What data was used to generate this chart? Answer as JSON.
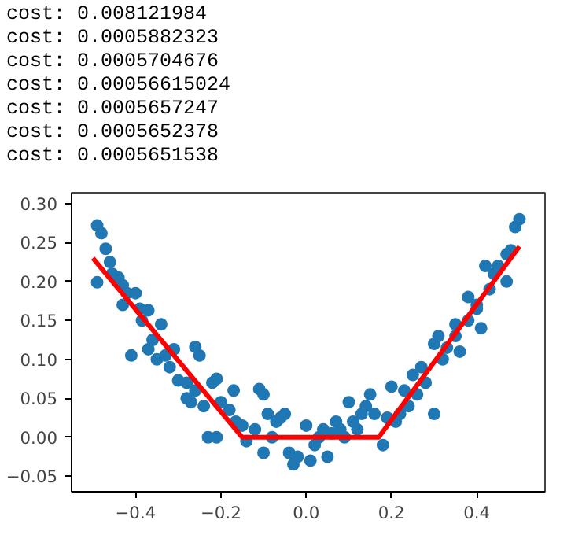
{
  "chart_data": {
    "type": "scatter",
    "annotations": [
      "cost: 0.008121984",
      "cost: 0.0005882323",
      "cost: 0.0005704676",
      "cost: 0.00056615024",
      "cost: 0.0005657247",
      "cost: 0.0005652378",
      "cost: 0.0005651538"
    ],
    "xlim": [
      -0.55,
      0.56
    ],
    "ylim": [
      -0.07,
      0.314
    ],
    "xticks": [
      {
        "value": -0.4,
        "label": "−0.4"
      },
      {
        "value": -0.2,
        "label": "−0.2"
      },
      {
        "value": 0.0,
        "label": "0.0"
      },
      {
        "value": 0.2,
        "label": "0.2"
      },
      {
        "value": 0.4,
        "label": "0.4"
      }
    ],
    "yticks": [
      {
        "value": -0.05,
        "label": "−0.05"
      },
      {
        "value": 0.0,
        "label": "0.00"
      },
      {
        "value": 0.05,
        "label": "0.05"
      },
      {
        "value": 0.1,
        "label": "0.10"
      },
      {
        "value": 0.15,
        "label": "0.15"
      },
      {
        "value": 0.2,
        "label": "0.20"
      },
      {
        "value": 0.25,
        "label": "0.25"
      },
      {
        "value": 0.3,
        "label": "0.30"
      }
    ],
    "grid": false,
    "series": [
      {
        "marker": "circle",
        "color": "#1f77b4",
        "x": [
          -0.49,
          -0.48,
          -0.49,
          -0.47,
          -0.46,
          -0.455,
          -0.44,
          -0.43,
          -0.42,
          -0.4,
          -0.43,
          -0.41,
          -0.39,
          -0.385,
          -0.37,
          -0.37,
          -0.36,
          -0.34,
          -0.33,
          -0.31,
          -0.3,
          -0.26,
          -0.28,
          -0.28,
          -0.26,
          -0.25,
          -0.24,
          -0.22,
          -0.21,
          -0.2,
          -0.18,
          -0.17,
          -0.165,
          -0.15,
          -0.14,
          -0.12,
          -0.11,
          -0.1,
          -0.1,
          -0.09,
          -0.08,
          -0.07,
          -0.06,
          -0.05,
          -0.04,
          -0.03,
          -0.02,
          -0.23,
          -0.21,
          -0.32,
          -0.35,
          -0.27,
          0.0,
          0.01,
          0.02,
          0.03,
          0.04,
          0.05,
          0.06,
          0.07,
          0.09,
          0.1,
          0.11,
          0.12,
          0.13,
          0.14,
          0.15,
          0.16,
          0.18,
          0.2,
          0.21,
          0.22,
          0.23,
          0.24,
          0.25,
          0.27,
          0.28,
          0.3,
          0.3,
          0.31,
          0.32,
          0.33,
          0.35,
          0.36,
          0.38,
          0.38,
          0.4,
          0.4,
          0.41,
          0.42,
          0.43,
          0.44,
          0.45,
          0.47,
          0.47,
          0.48,
          0.49,
          0.5,
          0.35,
          0.26,
          0.19,
          0.08
        ],
        "values": [
          0.272,
          0.262,
          0.199,
          0.242,
          0.225,
          0.21,
          0.205,
          0.195,
          0.185,
          0.185,
          0.17,
          0.105,
          0.165,
          0.15,
          0.163,
          0.113,
          0.125,
          0.145,
          0.105,
          0.113,
          0.073,
          0.116,
          0.07,
          0.05,
          0.06,
          0.105,
          0.04,
          0.07,
          0.075,
          0.045,
          0.035,
          0.06,
          0.02,
          0.015,
          -0.005,
          0.01,
          0.062,
          0.055,
          -0.02,
          0.03,
          0.0,
          0.02,
          0.025,
          0.03,
          -0.02,
          -0.035,
          -0.025,
          0.0,
          0.0,
          0.09,
          0.1,
          0.045,
          0.015,
          -0.03,
          -0.01,
          0.0,
          0.01,
          -0.025,
          0.005,
          0.02,
          0.0,
          0.045,
          0.02,
          0.01,
          0.03,
          0.04,
          0.055,
          0.03,
          -0.01,
          0.065,
          0.02,
          0.03,
          0.06,
          0.04,
          0.08,
          0.09,
          0.07,
          0.03,
          0.12,
          0.13,
          0.1,
          0.115,
          0.13,
          0.11,
          0.18,
          0.15,
          0.165,
          0.17,
          0.14,
          0.22,
          0.19,
          0.21,
          0.22,
          0.2,
          0.235,
          0.24,
          0.27,
          0.28,
          0.145,
          0.055,
          0.025,
          0.01
        ]
      },
      {
        "type": "line",
        "color": "#ff0000",
        "x": [
          -0.5,
          -0.15,
          0.17,
          0.5
        ],
        "values": [
          0.23,
          0.0,
          0.0,
          0.245
        ]
      }
    ]
  }
}
